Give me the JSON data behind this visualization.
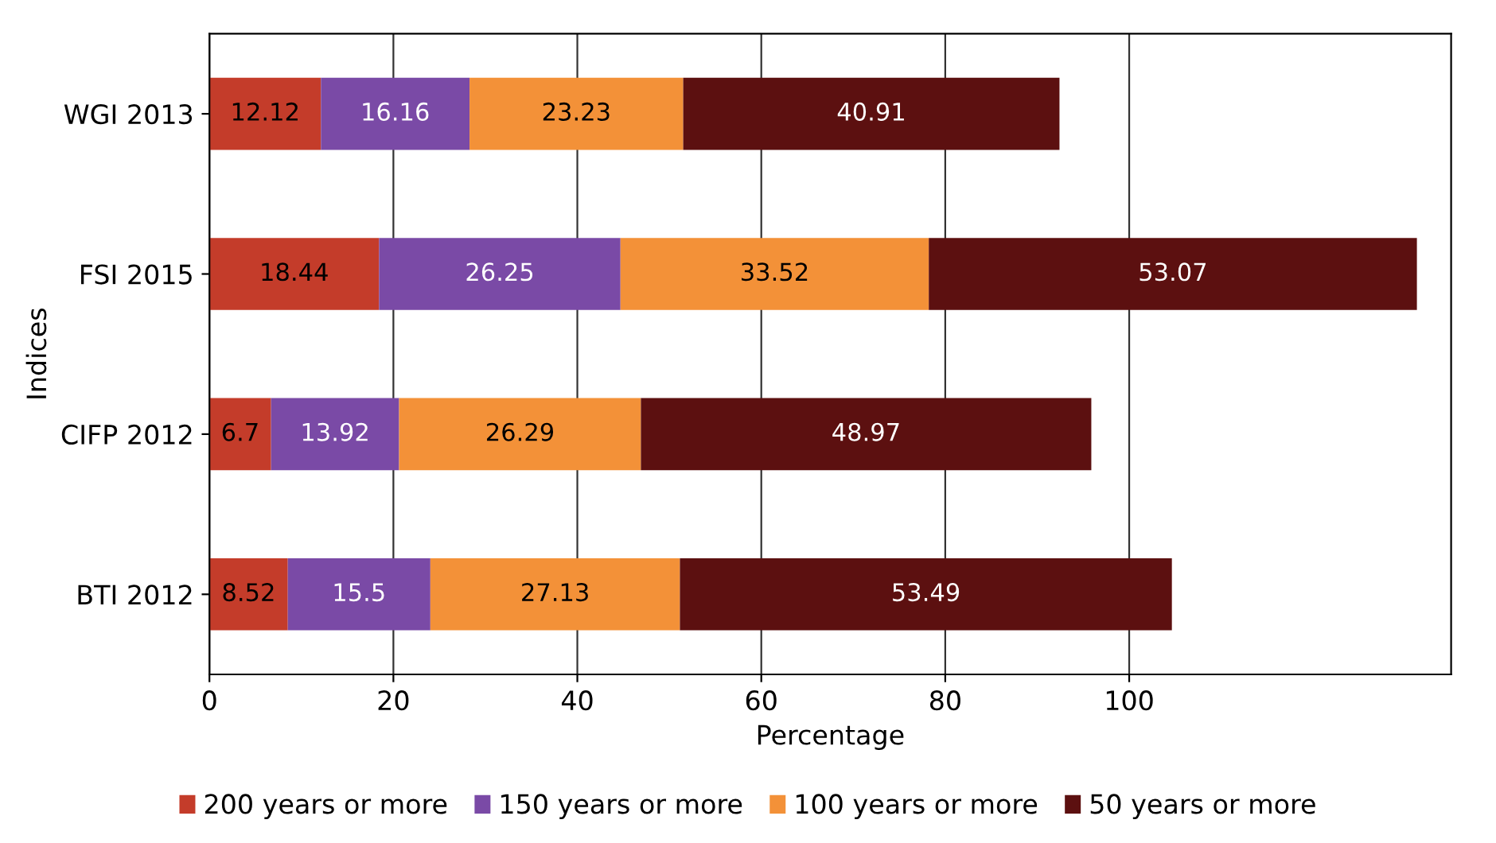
{
  "chart_data": {
    "type": "bar",
    "orientation": "horizontal",
    "stacked": true,
    "xlabel": "Percentage",
    "ylabel": "Indices",
    "categories": [
      "WGI 2013",
      "FSI 2015",
      "CIFP 2012",
      "BTI 2012"
    ],
    "series": [
      {
        "name": "200 years or more",
        "color": "#c43c2a",
        "values": [
          12.12,
          18.44,
          6.7,
          8.52
        ]
      },
      {
        "name": "150 years or more",
        "color": "#7a4aa6",
        "values": [
          16.16,
          26.25,
          13.92,
          15.5
        ]
      },
      {
        "name": "100 years or more",
        "color": "#f39138",
        "values": [
          23.23,
          33.52,
          26.29,
          27.13
        ]
      },
      {
        "name": "50 years or more",
        "color": "#5c1010",
        "values": [
          40.91,
          53.07,
          48.97,
          53.49
        ]
      }
    ],
    "data_labels": true,
    "xlim": [
      0,
      135
    ],
    "xticks": [
      0,
      20,
      40,
      60,
      80,
      100
    ],
    "grid": "x",
    "legend": "bottom"
  }
}
